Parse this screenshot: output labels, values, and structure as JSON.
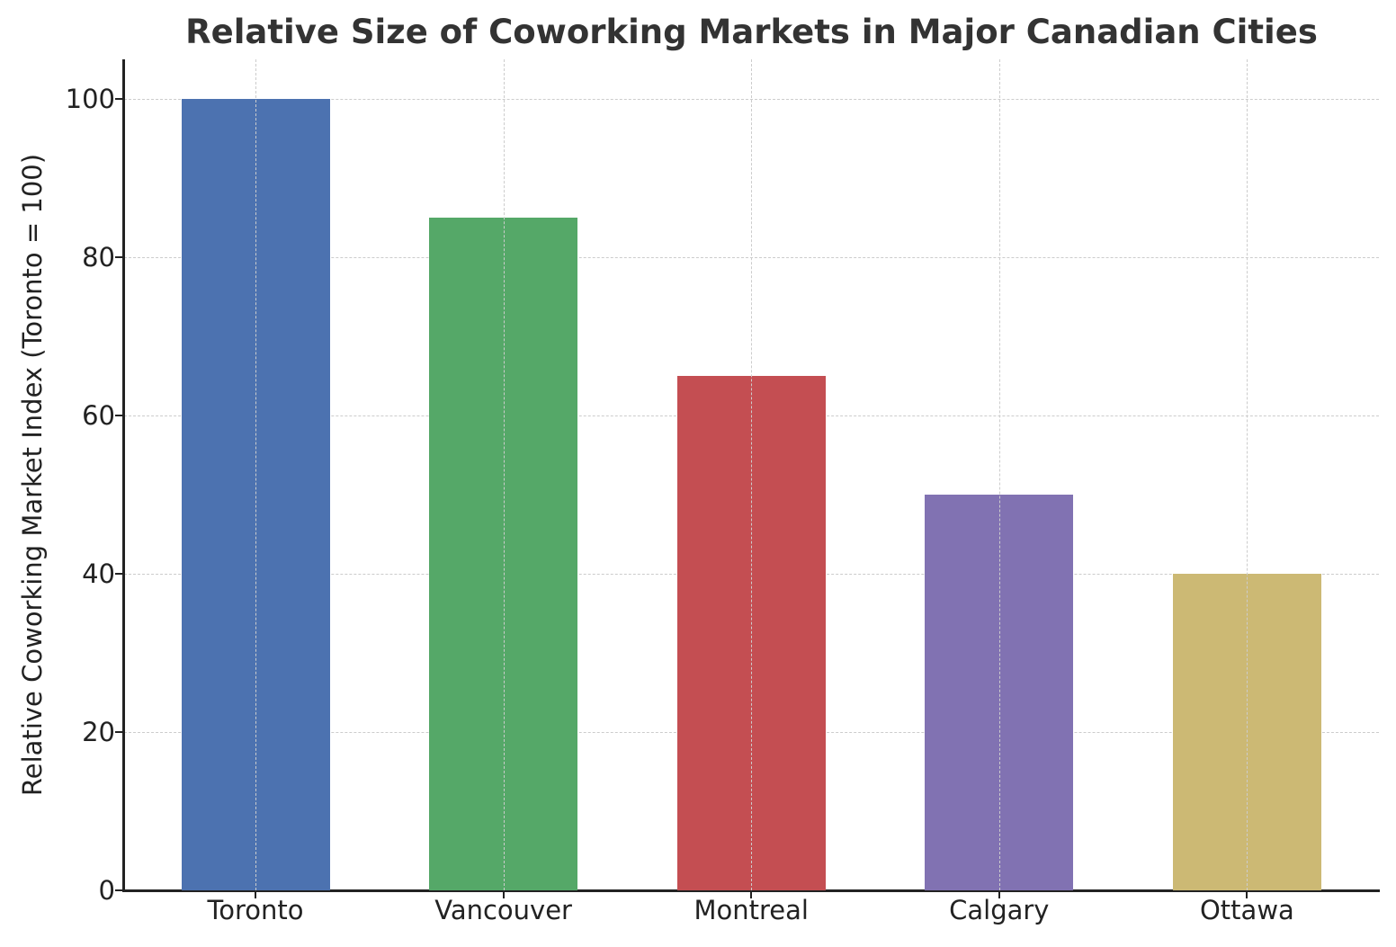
{
  "chart_data": {
    "type": "bar",
    "title": "Relative Size of Coworking Markets in Major Canadian Cities",
    "xlabel": "",
    "ylabel": "Relative Coworking Market Index (Toronto = 100)",
    "categories": [
      "Toronto",
      "Vancouver",
      "Montreal",
      "Calgary",
      "Ottawa"
    ],
    "values": [
      100,
      85,
      65,
      50,
      40
    ],
    "colors": [
      "#4c72b0",
      "#55a868",
      "#c44e52",
      "#8172b2",
      "#ccb974"
    ],
    "ylim": [
      0,
      105
    ],
    "yticks": [
      0,
      20,
      40,
      60,
      80,
      100
    ],
    "grid": true,
    "legend": null
  }
}
